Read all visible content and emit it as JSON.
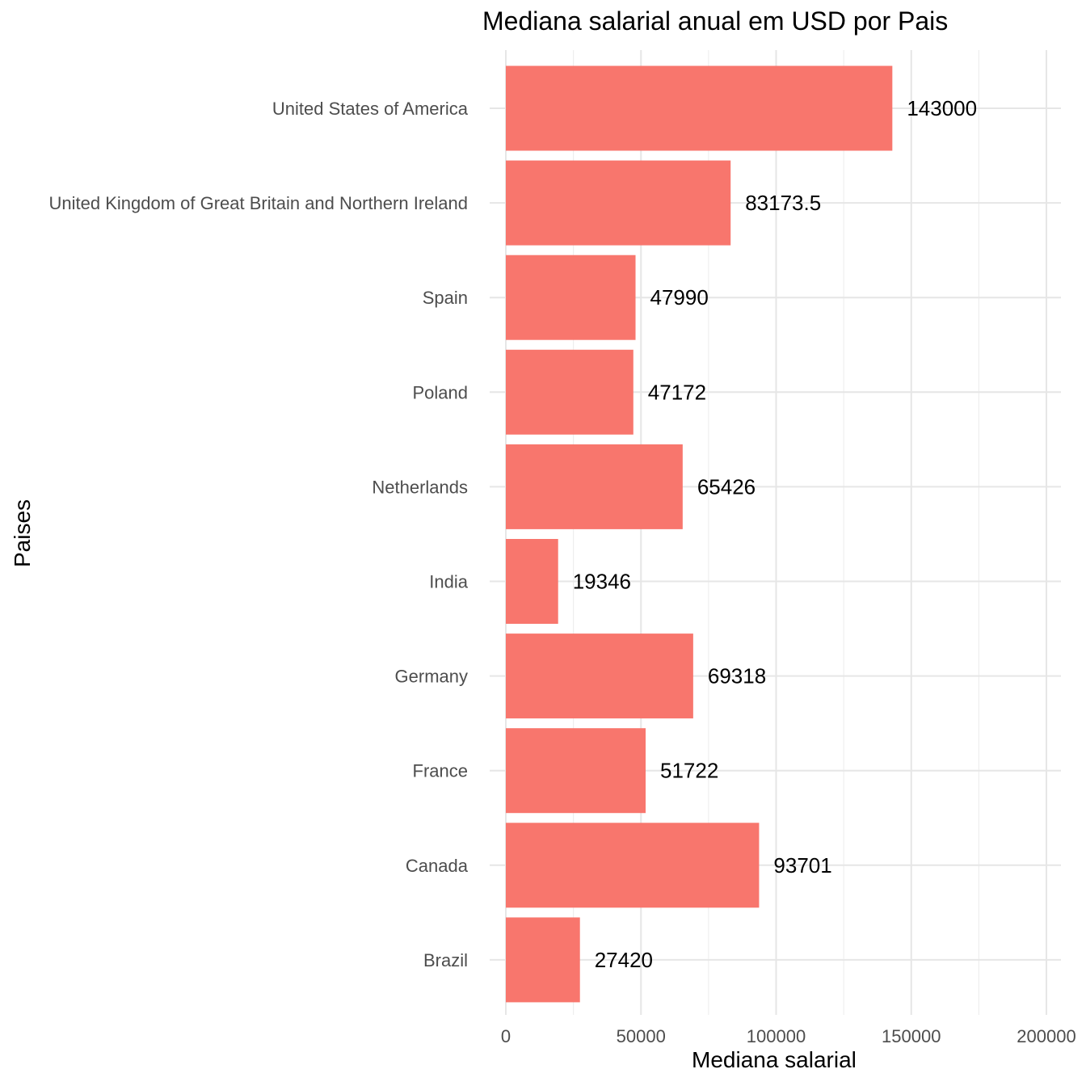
{
  "chart_data": {
    "type": "bar",
    "orientation": "horizontal",
    "title": "Mediana salarial anual em USD por Pais",
    "xlabel": "Mediana salarial",
    "ylabel": "Paises",
    "xlim": [
      0,
      200000
    ],
    "x_ticks": [
      0,
      50000,
      100000,
      150000,
      200000
    ],
    "x_tick_labels": [
      "0",
      "50000",
      "100000",
      "150000",
      "200000"
    ],
    "grid": true,
    "bar_color": "#F8766D",
    "categories": [
      "United States of America",
      "United Kingdom of Great Britain and Northern Ireland",
      "Spain",
      "Poland",
      "Netherlands",
      "India",
      "Germany",
      "France",
      "Canada",
      "Brazil"
    ],
    "values": [
      143000,
      83173.5,
      47990,
      47172,
      65426,
      19346,
      69318,
      51722,
      93701,
      27420
    ],
    "data_labels": [
      "143000",
      "83173.5",
      "47990",
      "47172",
      "65426",
      "19346",
      "69318",
      "51722",
      "93701",
      "27420"
    ]
  }
}
